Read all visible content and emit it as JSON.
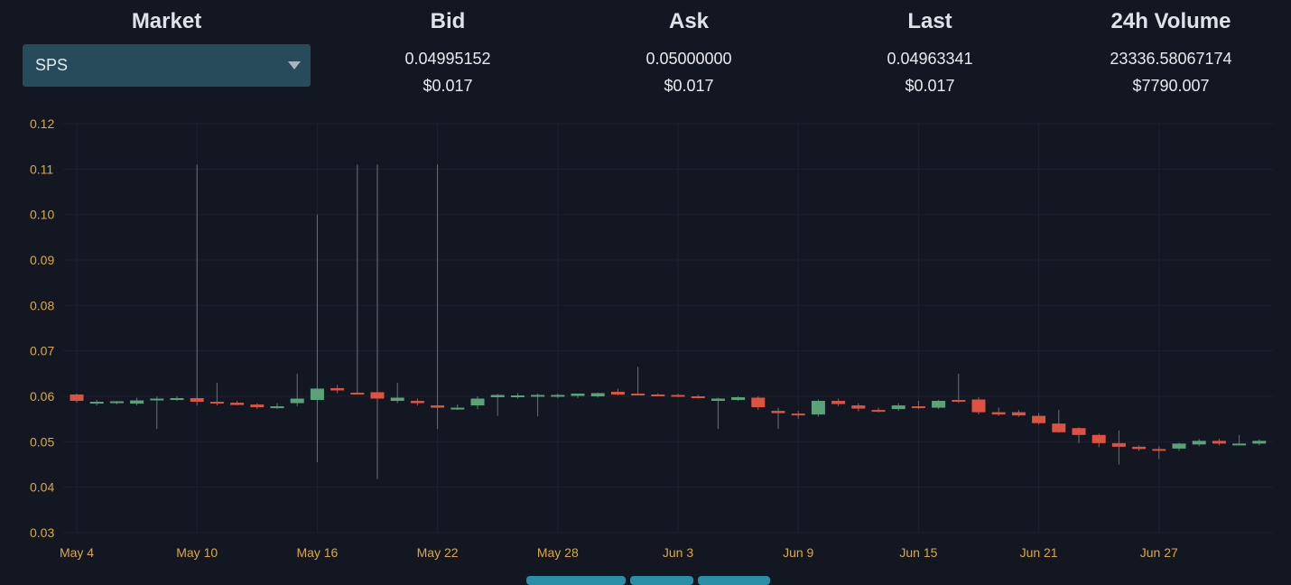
{
  "header": {
    "market": {
      "title": "Market",
      "selected": "SPS"
    },
    "bid": {
      "title": "Bid",
      "value": "0.04995152",
      "usd": "$0.017"
    },
    "ask": {
      "title": "Ask",
      "value": "0.05000000",
      "usd": "$0.017"
    },
    "last": {
      "title": "Last",
      "value": "0.04963341",
      "usd": "$0.017"
    },
    "volume": {
      "title": "24h Volume",
      "value": "23336.58067174",
      "usd": "$7790.007"
    }
  },
  "colors": {
    "up": "#5aa37a",
    "down": "#e0523f",
    "wick": "#6b7078",
    "axis_text": "#d9a84a",
    "background": "#131722",
    "select_bg": "#284b5c"
  },
  "chart_data": {
    "type": "candlestick",
    "ylim": [
      0.03,
      0.12
    ],
    "y_ticks": [
      "0.12",
      "0.11",
      "0.10",
      "0.09",
      "0.08",
      "0.07",
      "0.06",
      "0.05",
      "0.04",
      "0.03"
    ],
    "x_tick_labels": [
      "May 4",
      "May 10",
      "May 16",
      "May 22",
      "May 28",
      "Jun 3",
      "Jun 9",
      "Jun 15",
      "Jun 21",
      "Jun 27"
    ],
    "grid": true,
    "candles": [
      {
        "date": "May 4",
        "o": 0.0604,
        "h": 0.0606,
        "l": 0.0586,
        "c": 0.059
      },
      {
        "date": "May 5",
        "o": 0.0586,
        "h": 0.0592,
        "l": 0.058,
        "c": 0.0588
      },
      {
        "date": "May 6",
        "o": 0.0585,
        "h": 0.059,
        "l": 0.0582,
        "c": 0.0589
      },
      {
        "date": "May 7",
        "o": 0.0584,
        "h": 0.0597,
        "l": 0.058,
        "c": 0.0591
      },
      {
        "date": "May 8",
        "o": 0.0593,
        "h": 0.06,
        "l": 0.0528,
        "c": 0.0595
      },
      {
        "date": "May 9",
        "o": 0.0592,
        "h": 0.06,
        "l": 0.059,
        "c": 0.0596
      },
      {
        "date": "May 10",
        "o": 0.0596,
        "h": 0.111,
        "l": 0.058,
        "c": 0.0588
      },
      {
        "date": "May 11",
        "o": 0.0588,
        "h": 0.063,
        "l": 0.058,
        "c": 0.0585
      },
      {
        "date": "May 12",
        "o": 0.0586,
        "h": 0.059,
        "l": 0.058,
        "c": 0.0581
      },
      {
        "date": "May 13",
        "o": 0.0582,
        "h": 0.0585,
        "l": 0.0572,
        "c": 0.0576
      },
      {
        "date": "May 14",
        "o": 0.0576,
        "h": 0.0585,
        "l": 0.0572,
        "c": 0.0578
      },
      {
        "date": "May 15",
        "o": 0.0585,
        "h": 0.065,
        "l": 0.0578,
        "c": 0.0595
      },
      {
        "date": "May 16",
        "o": 0.0592,
        "h": 0.1,
        "l": 0.0455,
        "c": 0.0617
      },
      {
        "date": "May 17",
        "o": 0.0618,
        "h": 0.0625,
        "l": 0.0607,
        "c": 0.0613
      },
      {
        "date": "May 18",
        "o": 0.0608,
        "h": 0.111,
        "l": 0.0605,
        "c": 0.0607
      },
      {
        "date": "May 19",
        "o": 0.0609,
        "h": 0.111,
        "l": 0.0418,
        "c": 0.0595
      },
      {
        "date": "May 20",
        "o": 0.059,
        "h": 0.063,
        "l": 0.0585,
        "c": 0.0597
      },
      {
        "date": "May 21",
        "o": 0.059,
        "h": 0.0595,
        "l": 0.058,
        "c": 0.0585
      },
      {
        "date": "May 22",
        "o": 0.058,
        "h": 0.111,
        "l": 0.0528,
        "c": 0.0575
      },
      {
        "date": "May 23",
        "o": 0.0573,
        "h": 0.0582,
        "l": 0.057,
        "c": 0.0575
      },
      {
        "date": "May 24",
        "o": 0.058,
        "h": 0.06,
        "l": 0.0572,
        "c": 0.0595
      },
      {
        "date": "May 25",
        "o": 0.0598,
        "h": 0.0605,
        "l": 0.0557,
        "c": 0.0603
      },
      {
        "date": "May 26",
        "o": 0.06,
        "h": 0.0607,
        "l": 0.0595,
        "c": 0.0602
      },
      {
        "date": "May 27",
        "o": 0.0601,
        "h": 0.0606,
        "l": 0.0556,
        "c": 0.0603
      },
      {
        "date": "May 28",
        "o": 0.06,
        "h": 0.0606,
        "l": 0.0596,
        "c": 0.0603
      },
      {
        "date": "May 29",
        "o": 0.0601,
        "h": 0.0606,
        "l": 0.0596,
        "c": 0.0606
      },
      {
        "date": "May 30",
        "o": 0.06,
        "h": 0.0608,
        "l": 0.0597,
        "c": 0.0607
      },
      {
        "date": "May 31",
        "o": 0.061,
        "h": 0.0617,
        "l": 0.0602,
        "c": 0.0604
      },
      {
        "date": "Jun 1",
        "o": 0.0606,
        "h": 0.0665,
        "l": 0.0603,
        "c": 0.0604
      },
      {
        "date": "Jun 2",
        "o": 0.0604,
        "h": 0.0607,
        "l": 0.06,
        "c": 0.0602
      },
      {
        "date": "Jun 3",
        "o": 0.0603,
        "h": 0.0606,
        "l": 0.0598,
        "c": 0.06
      },
      {
        "date": "Jun 4",
        "o": 0.06,
        "h": 0.0603,
        "l": 0.0595,
        "c": 0.0597
      },
      {
        "date": "Jun 5",
        "o": 0.059,
        "h": 0.0597,
        "l": 0.0528,
        "c": 0.0595
      },
      {
        "date": "Jun 6",
        "o": 0.0592,
        "h": 0.06,
        "l": 0.059,
        "c": 0.0598
      },
      {
        "date": "Jun 7",
        "o": 0.0597,
        "h": 0.06,
        "l": 0.057,
        "c": 0.0576
      },
      {
        "date": "Jun 8",
        "o": 0.0568,
        "h": 0.0575,
        "l": 0.0528,
        "c": 0.0563
      },
      {
        "date": "Jun 9",
        "o": 0.0562,
        "h": 0.0568,
        "l": 0.055,
        "c": 0.056
      },
      {
        "date": "Jun 10",
        "o": 0.056,
        "h": 0.0593,
        "l": 0.0555,
        "c": 0.059
      },
      {
        "date": "Jun 11",
        "o": 0.059,
        "h": 0.0595,
        "l": 0.0578,
        "c": 0.0583
      },
      {
        "date": "Jun 12",
        "o": 0.058,
        "h": 0.0585,
        "l": 0.0567,
        "c": 0.0573
      },
      {
        "date": "Jun 13",
        "o": 0.057,
        "h": 0.0575,
        "l": 0.0565,
        "c": 0.0568
      },
      {
        "date": "Jun 14",
        "o": 0.0572,
        "h": 0.0585,
        "l": 0.0568,
        "c": 0.058
      },
      {
        "date": "Jun 15",
        "o": 0.0578,
        "h": 0.059,
        "l": 0.0572,
        "c": 0.0575
      },
      {
        "date": "Jun 16",
        "o": 0.0575,
        "h": 0.0592,
        "l": 0.0572,
        "c": 0.059
      },
      {
        "date": "Jun 17",
        "o": 0.0592,
        "h": 0.065,
        "l": 0.0585,
        "c": 0.059
      },
      {
        "date": "Jun 18",
        "o": 0.0593,
        "h": 0.0598,
        "l": 0.056,
        "c": 0.0565
      },
      {
        "date": "Jun 19",
        "o": 0.0565,
        "h": 0.0575,
        "l": 0.0557,
        "c": 0.056
      },
      {
        "date": "Jun 20",
        "o": 0.0565,
        "h": 0.057,
        "l": 0.0555,
        "c": 0.0558
      },
      {
        "date": "Jun 21",
        "o": 0.0557,
        "h": 0.0563,
        "l": 0.0538,
        "c": 0.0541
      },
      {
        "date": "Jun 22",
        "o": 0.054,
        "h": 0.057,
        "l": 0.052,
        "c": 0.0521
      },
      {
        "date": "Jun 23",
        "o": 0.053,
        "h": 0.0532,
        "l": 0.0497,
        "c": 0.0515
      },
      {
        "date": "Jun 24",
        "o": 0.0515,
        "h": 0.0518,
        "l": 0.0488,
        "c": 0.0497
      },
      {
        "date": "Jun 25",
        "o": 0.0497,
        "h": 0.0525,
        "l": 0.045,
        "c": 0.0489
      },
      {
        "date": "Jun 26",
        "o": 0.0489,
        "h": 0.0492,
        "l": 0.048,
        "c": 0.0484
      },
      {
        "date": "Jun 27",
        "o": 0.0484,
        "h": 0.049,
        "l": 0.0462,
        "c": 0.0482
      },
      {
        "date": "Jun 28",
        "o": 0.0485,
        "h": 0.0498,
        "l": 0.048,
        "c": 0.0496
      },
      {
        "date": "Jun 29",
        "o": 0.0494,
        "h": 0.0506,
        "l": 0.049,
        "c": 0.0502
      },
      {
        "date": "Jun 30",
        "o": 0.0502,
        "h": 0.0507,
        "l": 0.0492,
        "c": 0.0496
      },
      {
        "date": "Jul 1",
        "o": 0.0496,
        "h": 0.0515,
        "l": 0.0492,
        "c": 0.0496
      },
      {
        "date": "Jul 2",
        "o": 0.0496,
        "h": 0.0505,
        "l": 0.0492,
        "c": 0.0502
      }
    ]
  }
}
